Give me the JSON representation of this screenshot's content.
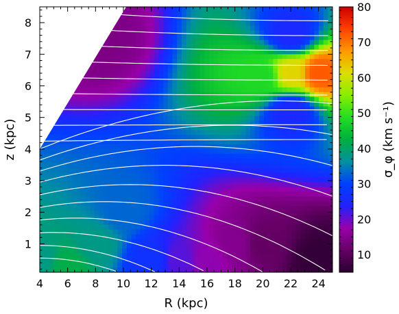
{
  "chart_data": {
    "type": "heatmap",
    "x": {
      "label": "R (kpc)",
      "range": [
        4,
        25
      ],
      "ticks": [
        4,
        6,
        8,
        10,
        12,
        14,
        16,
        18,
        20,
        22,
        24
      ]
    },
    "y": {
      "label": "z (kpc)",
      "range": [
        0.1,
        8.5
      ],
      "ticks": [
        1,
        2,
        3,
        4,
        5,
        6,
        7,
        8
      ]
    },
    "colorbar": {
      "label": "σ_φ (km s⁻¹)",
      "range": [
        5,
        80
      ],
      "ticks": [
        10,
        20,
        30,
        40,
        50,
        60,
        70,
        80
      ],
      "colormap": [
        "#2a0030",
        "#660066",
        "#9900aa",
        "#2222ff",
        "#0040ff",
        "#0090a0",
        "#00b040",
        "#22dd22",
        "#88ee00",
        "#dddd00",
        "#ff9900",
        "#ff4000",
        "#cc0000"
      ]
    },
    "masked_region": "upper-left wedge, boundary from (R 4, z 4.0) to (R 10.2, z 8.5)",
    "field_samples": [
      {
        "R": 4,
        "z": 0.5,
        "value": 38
      },
      {
        "R": 6,
        "z": 0.3,
        "value": 42
      },
      {
        "R": 8,
        "z": 1.0,
        "value": 38
      },
      {
        "R": 10,
        "z": 2.0,
        "value": 33
      },
      {
        "R": 12,
        "z": 0.5,
        "value": 27
      },
      {
        "R": 14,
        "z": 0.5,
        "value": 21
      },
      {
        "R": 16,
        "z": 0.5,
        "value": 18
      },
      {
        "R": 18,
        "z": 1.0,
        "value": 15
      },
      {
        "R": 20,
        "z": 1.0,
        "value": 11
      },
      {
        "R": 24,
        "z": 0.5,
        "value": 6
      },
      {
        "R": 20,
        "z": 6.3,
        "value": 48
      },
      {
        "R": 22,
        "z": 6.4,
        "value": 62
      },
      {
        "R": 24,
        "z": 6.4,
        "value": 72
      },
      {
        "R": 22,
        "z": 7.6,
        "value": 25
      },
      {
        "R": 22,
        "z": 5.2,
        "value": 25
      },
      {
        "R": 8,
        "z": 7.5,
        "value": 14
      }
    ],
    "contours": "white iso-lines, about 18 levels, concave curves running outward from the inner (left) edge"
  }
}
